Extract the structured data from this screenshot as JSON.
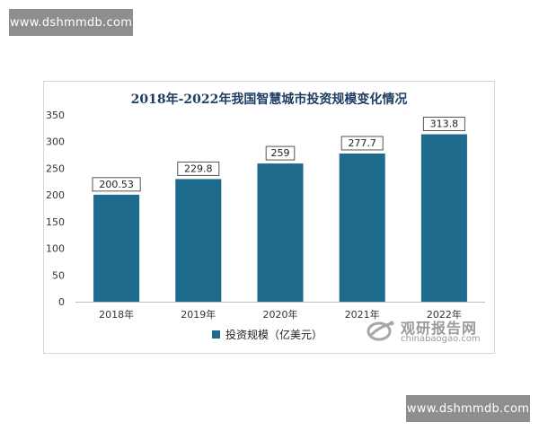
{
  "watermark": {
    "top_text": "www.dshmmdb.com",
    "bottom_text": "www.dshmmdb.com"
  },
  "brand": {
    "name_cn": "观研报告网",
    "name_en": "chinabaogao.com"
  },
  "chart_data": {
    "type": "bar",
    "title": "2018年-2022年我国智慧城市投资规模变化情况",
    "categories": [
      "2018年",
      "2019年",
      "2020年",
      "2021年",
      "2022年"
    ],
    "series": [
      {
        "name": "投资规模（亿美元）",
        "values": [
          200.53,
          229.8,
          259,
          277.7,
          313.8
        ],
        "color": "#1f6b8e"
      }
    ],
    "data_labels": [
      "200.53",
      "229.8",
      "259",
      "277.7",
      "313.8"
    ],
    "yticks": [
      "0",
      "50",
      "100",
      "150",
      "200",
      "250",
      "300",
      "350"
    ],
    "ylim": [
      0,
      350
    ],
    "xlabel": "",
    "ylabel": "",
    "legend_position": "bottom",
    "grid": false
  }
}
